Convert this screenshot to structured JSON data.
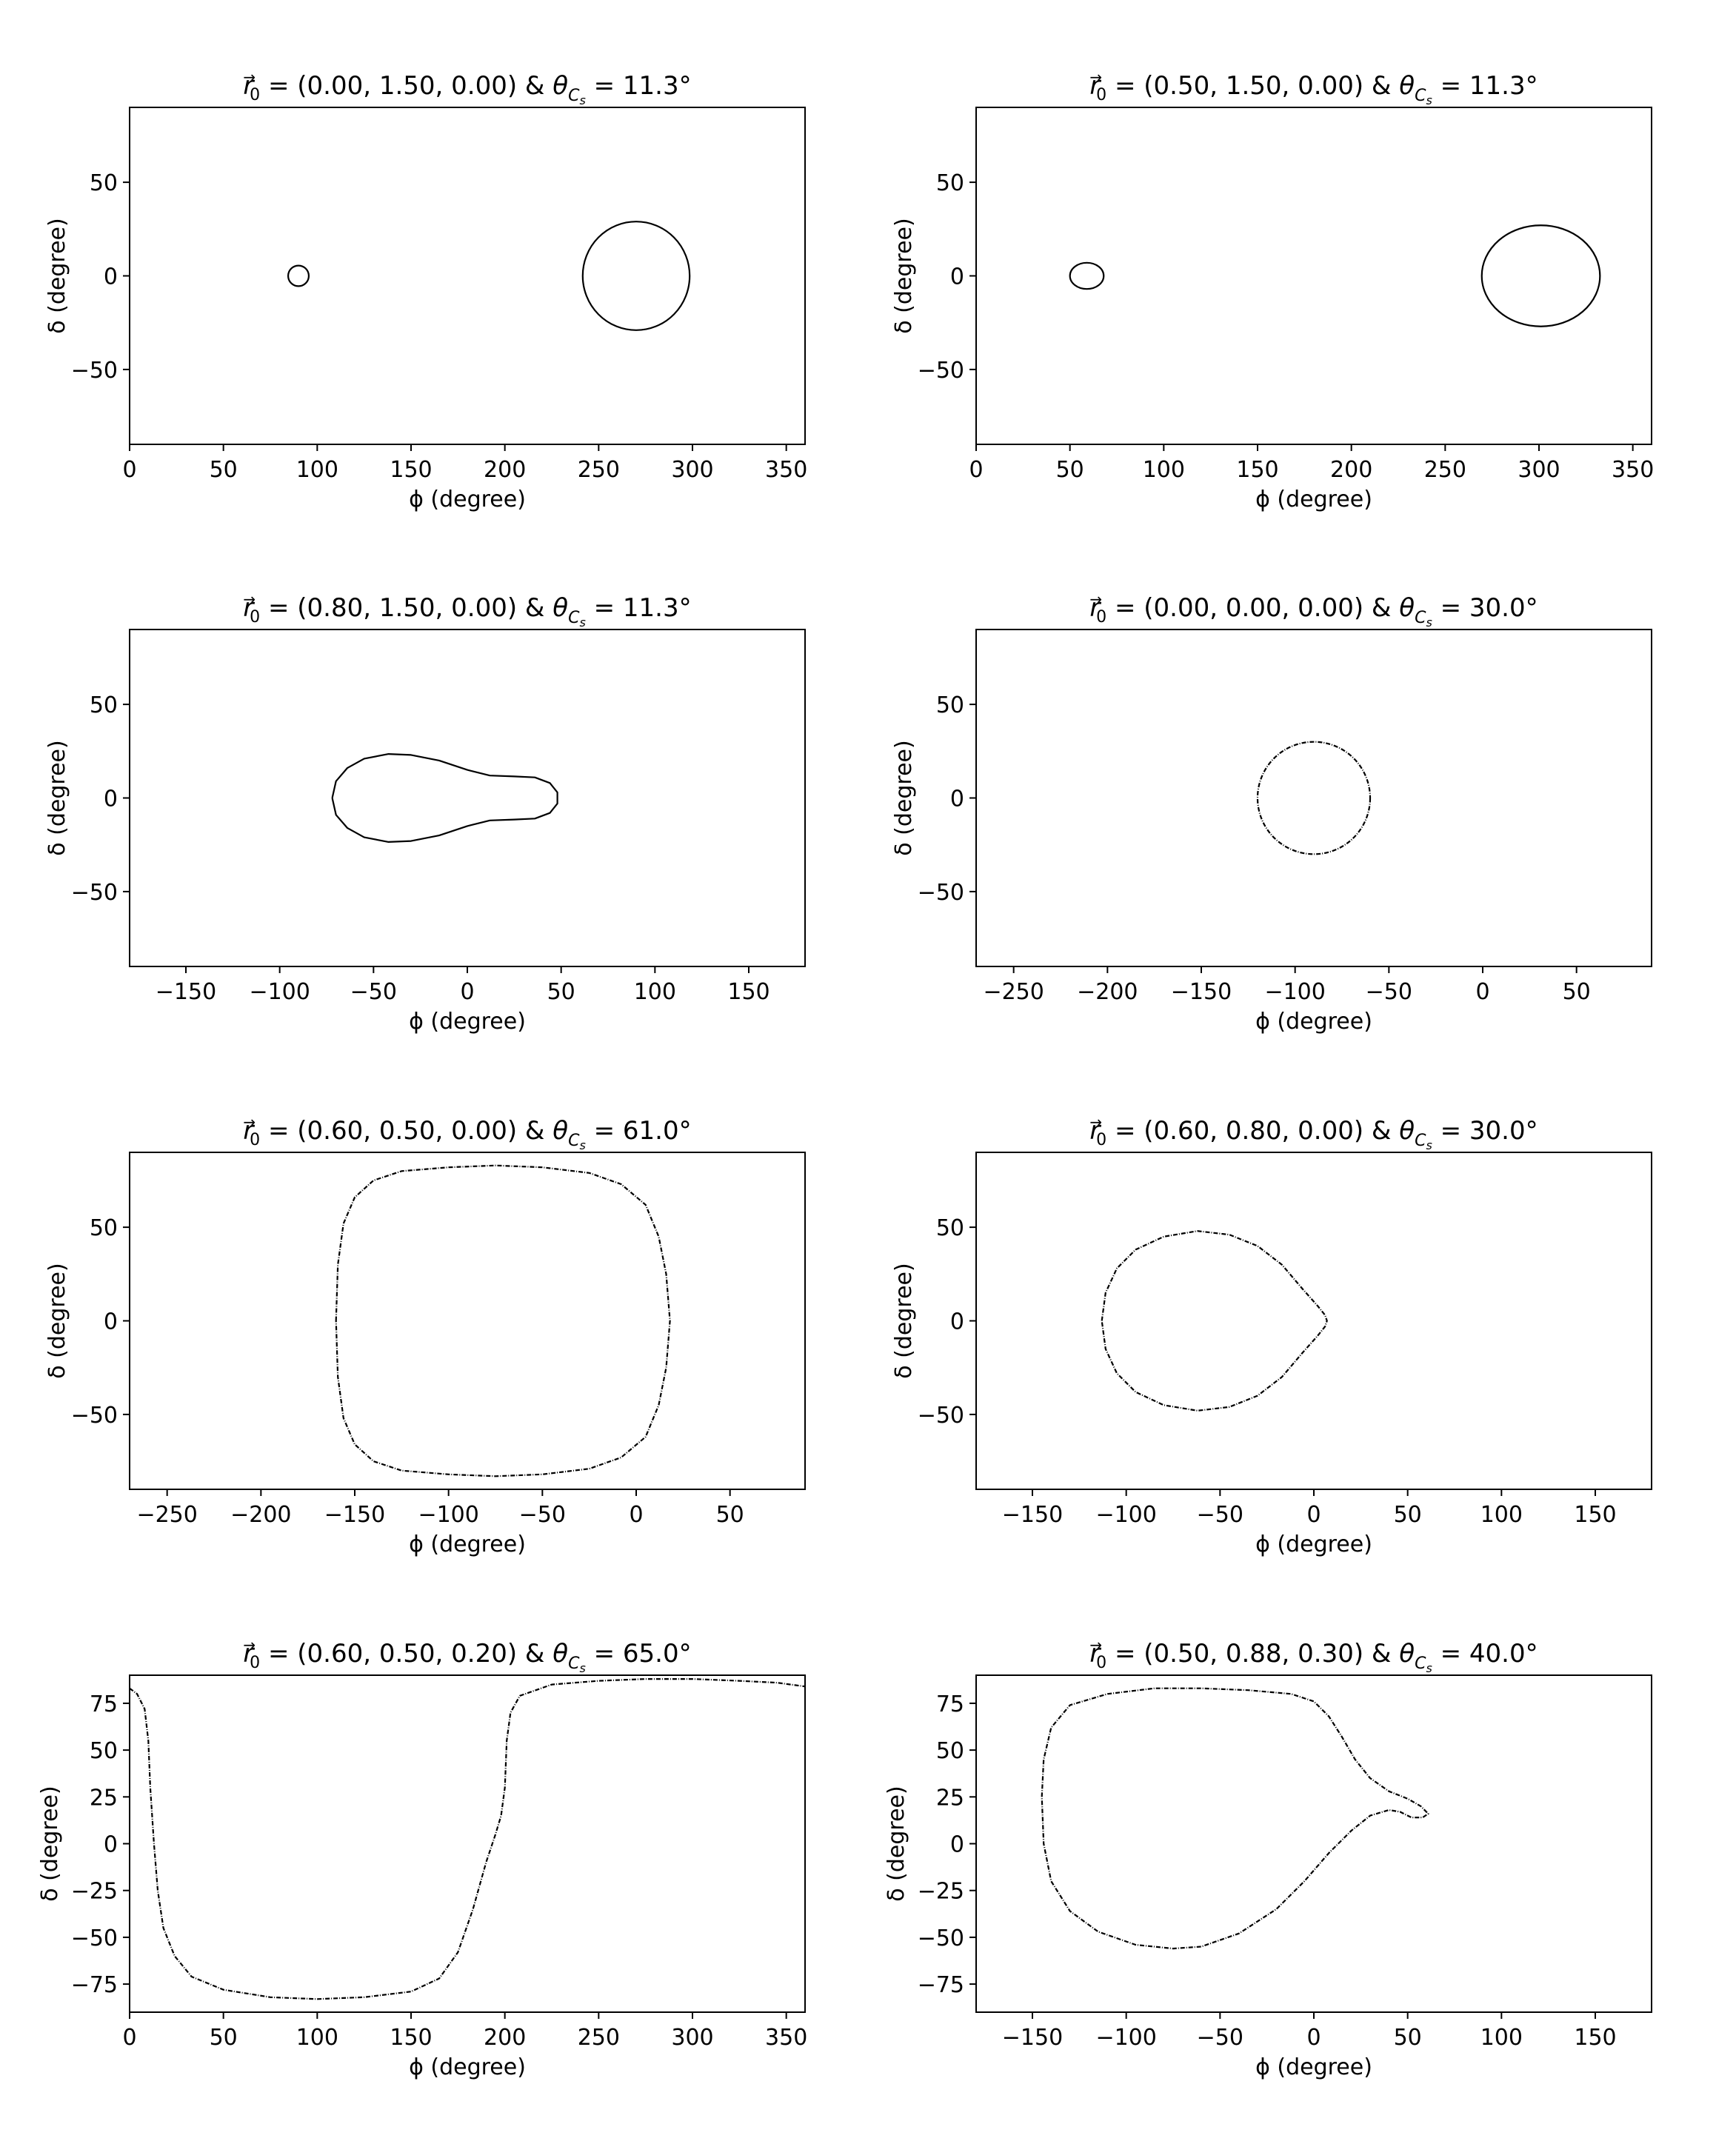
{
  "chart_data": [
    {
      "type": "line",
      "title": "r0 = (0.00, 1.50, 0.00) & θCs = 11.3°",
      "title_parts": {
        "r0": "(0.00, 1.50, 0.00)",
        "theta": "11.3°"
      },
      "xlabel": "ϕ (degree)",
      "ylabel": "δ (degree)",
      "xlim": [
        0,
        360
      ],
      "ylim": [
        -90,
        90
      ],
      "xticks": [
        0,
        50,
        100,
        150,
        200,
        250,
        300,
        350
      ],
      "yticks": [
        -50,
        0,
        50
      ],
      "series": [
        {
          "shape": "ellipse",
          "cx": 90,
          "cy": 0,
          "rx": 5.5,
          "ry": 5.5
        },
        {
          "shape": "ellipse",
          "cx": 270,
          "cy": 0,
          "rx": 28.5,
          "ry": 29
        }
      ]
    },
    {
      "type": "line",
      "title": "r0 = (0.50, 1.50, 0.00) & θCs = 11.3°",
      "title_parts": {
        "r0": "(0.50, 1.50, 0.00)",
        "theta": "11.3°"
      },
      "xlabel": "ϕ (degree)",
      "ylabel": "δ (degree)",
      "xlim": [
        0,
        360
      ],
      "ylim": [
        -90,
        90
      ],
      "xticks": [
        0,
        50,
        100,
        150,
        200,
        250,
        300,
        350
      ],
      "yticks": [
        -50,
        0,
        50
      ],
      "series": [
        {
          "shape": "ellipse",
          "cx": 59,
          "cy": 0,
          "rx": 9,
          "ry": 7
        },
        {
          "shape": "ellipse",
          "cx": 301,
          "cy": 0,
          "rx": 31.5,
          "ry": 27
        }
      ]
    },
    {
      "type": "line",
      "title": "r0 = (0.80, 1.50, 0.00) & θCs = 11.3°",
      "title_parts": {
        "r0": "(0.80, 1.50, 0.00)",
        "theta": "11.3°"
      },
      "xlabel": "ϕ (degree)",
      "ylabel": "δ (degree)",
      "xlim": [
        -180,
        180
      ],
      "ylim": [
        -90,
        90
      ],
      "xticks": [
        -150,
        -100,
        -50,
        0,
        50,
        100,
        150
      ],
      "yticks": [
        -50,
        0,
        50
      ],
      "series": [
        {
          "shape": "polyline",
          "points": [
            [
              -72,
              0
            ],
            [
              -70,
              9
            ],
            [
              -64,
              16
            ],
            [
              -55,
              21
            ],
            [
              -42,
              23.5
            ],
            [
              -30,
              23
            ],
            [
              -15,
              20
            ],
            [
              0,
              15
            ],
            [
              12,
              12
            ],
            [
              25,
              11.5
            ],
            [
              36,
              11
            ],
            [
              44,
              8
            ],
            [
              48,
              3
            ],
            [
              48,
              -3
            ],
            [
              44,
              -8
            ],
            [
              36,
              -11
            ],
            [
              25,
              -11.5
            ],
            [
              12,
              -12
            ],
            [
              0,
              -15
            ],
            [
              -15,
              -20
            ],
            [
              -30,
              -23
            ],
            [
              -42,
              -23.5
            ],
            [
              -55,
              -21
            ],
            [
              -64,
              -16
            ],
            [
              -70,
              -9
            ],
            [
              -72,
              0
            ]
          ]
        }
      ]
    },
    {
      "type": "line",
      "title": "r0 = (0.00, 0.00, 0.00) & θCs = 30.0°",
      "title_parts": {
        "r0": "(0.00, 0.00, 0.00)",
        "theta": "30.0°"
      },
      "xlabel": "ϕ (degree)",
      "ylabel": "δ (degree)",
      "xlim": [
        -270,
        90
      ],
      "ylim": [
        -90,
        90
      ],
      "xticks": [
        -250,
        -200,
        -150,
        -100,
        -50,
        0,
        50
      ],
      "yticks": [
        -50,
        0,
        50
      ],
      "series": [
        {
          "shape": "ellipse",
          "cx": -90,
          "cy": 0,
          "rx": 30,
          "ry": 30,
          "dashed": true
        }
      ]
    },
    {
      "type": "line",
      "title": "r0 = (0.60, 0.50, 0.00) & θCs = 61.0°",
      "title_parts": {
        "r0": "(0.60, 0.50, 0.00)",
        "theta": "61.0°"
      },
      "xlabel": "ϕ (degree)",
      "ylabel": "δ (degree)",
      "xlim": [
        -270,
        90
      ],
      "ylim": [
        -90,
        90
      ],
      "xticks": [
        -250,
        -200,
        -150,
        -100,
        -50,
        0,
        50
      ],
      "yticks": [
        -50,
        0,
        50
      ],
      "series": [
        {
          "shape": "polyline",
          "dashed": true,
          "points": [
            [
              -160,
              0
            ],
            [
              -159,
              30
            ],
            [
              -156,
              52
            ],
            [
              -150,
              66
            ],
            [
              -140,
              75
            ],
            [
              -125,
              80
            ],
            [
              -100,
              82
            ],
            [
              -75,
              83
            ],
            [
              -50,
              82
            ],
            [
              -25,
              79
            ],
            [
              -8,
              73
            ],
            [
              5,
              62
            ],
            [
              12,
              45
            ],
            [
              16,
              25
            ],
            [
              18,
              0
            ],
            [
              16,
              -25
            ],
            [
              12,
              -45
            ],
            [
              5,
              -62
            ],
            [
              -8,
              -73
            ],
            [
              -25,
              -79
            ],
            [
              -50,
              -82
            ],
            [
              -75,
              -83
            ],
            [
              -100,
              -82
            ],
            [
              -125,
              -80
            ],
            [
              -140,
              -75
            ],
            [
              -150,
              -66
            ],
            [
              -156,
              -52
            ],
            [
              -159,
              -30
            ],
            [
              -160,
              0
            ]
          ]
        }
      ]
    },
    {
      "type": "line",
      "title": "r0 = (0.60, 0.80, 0.00) & θCs = 30.0°",
      "title_parts": {
        "r0": "(0.60, 0.80, 0.00)",
        "theta": "30.0°"
      },
      "xlabel": "ϕ (degree)",
      "ylabel": "δ (degree)",
      "xlim": [
        -180,
        180
      ],
      "ylim": [
        -90,
        90
      ],
      "xticks": [
        -150,
        -100,
        -50,
        0,
        50,
        100,
        150
      ],
      "yticks": [
        -50,
        0,
        50
      ],
      "series": [
        {
          "shape": "polyline",
          "dashed": true,
          "points": [
            [
              -113,
              0
            ],
            [
              -111,
              15
            ],
            [
              -105,
              28
            ],
            [
              -95,
              38
            ],
            [
              -80,
              45
            ],
            [
              -62,
              48
            ],
            [
              -45,
              46
            ],
            [
              -30,
              40
            ],
            [
              -17,
              30
            ],
            [
              -6,
              17
            ],
            [
              2,
              8
            ],
            [
              6,
              3
            ],
            [
              7,
              0
            ],
            [
              6,
              -3
            ],
            [
              2,
              -8
            ],
            [
              -6,
              -17
            ],
            [
              -17,
              -30
            ],
            [
              -30,
              -40
            ],
            [
              -45,
              -46
            ],
            [
              -62,
              -48
            ],
            [
              -80,
              -45
            ],
            [
              -95,
              -38
            ],
            [
              -105,
              -28
            ],
            [
              -111,
              -15
            ],
            [
              -113,
              0
            ]
          ]
        }
      ]
    },
    {
      "type": "line",
      "title": "r0 = (0.60, 0.50, 0.20) & θCs = 65.0°",
      "title_parts": {
        "r0": "(0.60, 0.50, 0.20)",
        "theta": "65.0°"
      },
      "xlabel": "ϕ (degree)",
      "ylabel": "δ (degree)",
      "xlim": [
        0,
        360
      ],
      "ylim": [
        -90,
        90
      ],
      "xticks": [
        0,
        50,
        100,
        150,
        200,
        250,
        300,
        350
      ],
      "yticks": [
        -75,
        -50,
        -25,
        0,
        25,
        50,
        75
      ],
      "series": [
        {
          "shape": "polyline",
          "dashed": true,
          "points": [
            [
              0,
              83
            ],
            [
              4,
              80
            ],
            [
              8,
              72
            ],
            [
              10,
              55
            ],
            [
              11,
              30
            ],
            [
              13,
              0
            ],
            [
              15,
              -25
            ],
            [
              18,
              -45
            ],
            [
              24,
              -60
            ],
            [
              33,
              -71
            ],
            [
              50,
              -78
            ],
            [
              75,
              -82
            ],
            [
              100,
              -83
            ],
            [
              125,
              -82
            ],
            [
              150,
              -79
            ],
            [
              165,
              -72
            ],
            [
              175,
              -58
            ],
            [
              183,
              -35
            ],
            [
              190,
              -10
            ],
            [
              195,
              5
            ],
            [
              198,
              15
            ],
            [
              200,
              30
            ],
            [
              201,
              55
            ],
            [
              203,
              70
            ],
            [
              208,
              79
            ],
            [
              225,
              85
            ],
            [
              250,
              87
            ],
            [
              275,
              88
            ],
            [
              300,
              88
            ],
            [
              325,
              87
            ],
            [
              345,
              86
            ],
            [
              360,
              84
            ]
          ]
        }
      ]
    },
    {
      "type": "line",
      "title": "r0 = (0.50, 0.88, 0.30) & θCs = 40.0°",
      "title_parts": {
        "r0": "(0.50, 0.88, 0.30)",
        "theta": "40.0°"
      },
      "xlabel": "ϕ (degree)",
      "ylabel": "δ (degree)",
      "xlim": [
        -180,
        180
      ],
      "ylim": [
        -90,
        90
      ],
      "xticks": [
        -150,
        -100,
        -50,
        0,
        50,
        100,
        150
      ],
      "yticks": [
        -75,
        -50,
        -25,
        0,
        25,
        50,
        75
      ],
      "series": [
        {
          "shape": "polyline",
          "dashed": true,
          "points": [
            [
              -145,
              25
            ],
            [
              -144,
              45
            ],
            [
              -140,
              62
            ],
            [
              -130,
              74
            ],
            [
              -110,
              80
            ],
            [
              -85,
              83
            ],
            [
              -60,
              83
            ],
            [
              -35,
              82
            ],
            [
              -12,
              80
            ],
            [
              0,
              76
            ],
            [
              8,
              68
            ],
            [
              15,
              57
            ],
            [
              22,
              45
            ],
            [
              30,
              35
            ],
            [
              40,
              28
            ],
            [
              50,
              24
            ],
            [
              57,
              20
            ],
            [
              61,
              16
            ],
            [
              58,
              14
            ],
            [
              52,
              14
            ],
            [
              46,
              17
            ],
            [
              40,
              18
            ],
            [
              30,
              15
            ],
            [
              20,
              7
            ],
            [
              8,
              -5
            ],
            [
              -5,
              -20
            ],
            [
              -20,
              -35
            ],
            [
              -40,
              -48
            ],
            [
              -60,
              -55
            ],
            [
              -75,
              -56
            ],
            [
              -95,
              -54
            ],
            [
              -115,
              -47
            ],
            [
              -130,
              -36
            ],
            [
              -140,
              -20
            ],
            [
              -144,
              0
            ],
            [
              -145,
              25
            ]
          ]
        }
      ]
    }
  ]
}
